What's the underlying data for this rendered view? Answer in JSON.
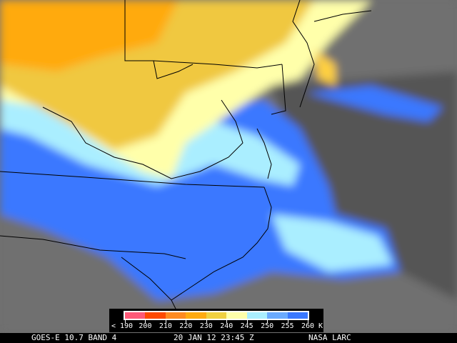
{
  "legend": {
    "unit": "K",
    "ticks": [
      "< 190",
      "200",
      "210",
      "220",
      "230",
      "240",
      "245",
      "250",
      "255",
      "260 K"
    ],
    "colors": [
      "#ff5a78",
      "#ff4a00",
      "#ff8a20",
      "#ffaa10",
      "#f0d040",
      "#ffffaa",
      "#aaeeff",
      "#6aaaff",
      "#3a78ff"
    ]
  },
  "caption": {
    "satellite": "GOES-E 10.7 BAND 4",
    "datetime": "20 JAN 12 23:45 Z",
    "source": "NASA LARC"
  }
}
